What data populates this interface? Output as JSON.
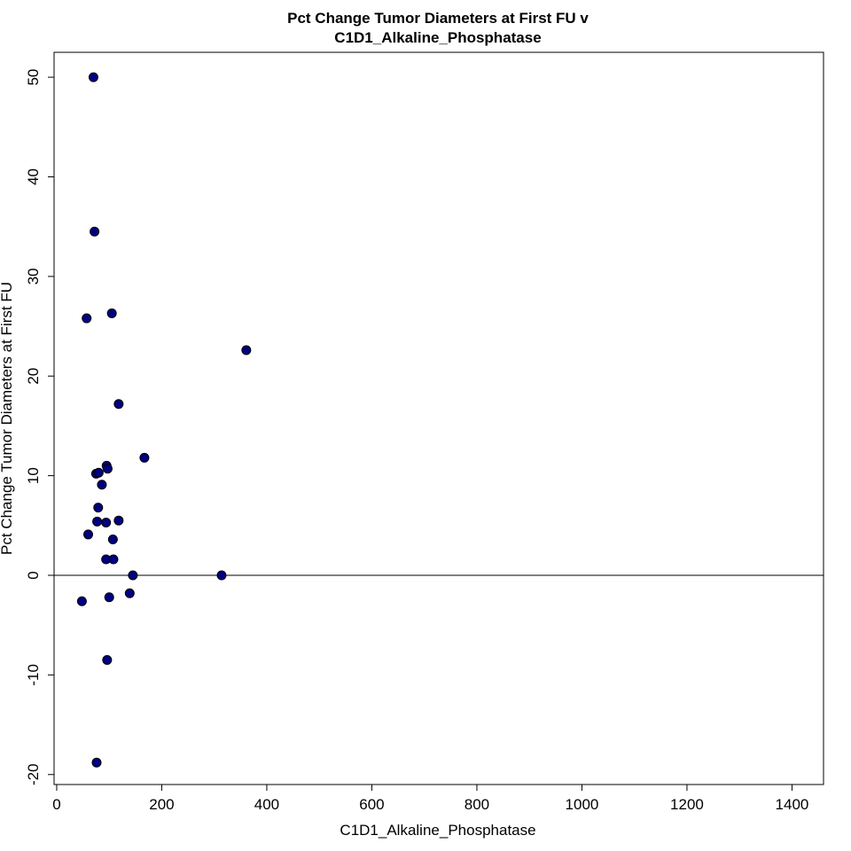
{
  "chart_data": {
    "type": "scatter",
    "title_line1": "Pct Change Tumor Diameters at First FU v",
    "title_line2": "C1D1_Alkaline_Phosphatase",
    "xlabel": "C1D1_Alkaline_Phosphatase",
    "ylabel": "Pct Change Tumor Diameters at First FU",
    "xlim": [
      -5,
      1460
    ],
    "ylim": [
      -21,
      52.5
    ],
    "x_ticks": [
      0,
      200,
      400,
      600,
      800,
      1000,
      1200,
      1400
    ],
    "x_tick_labels": [
      "0",
      "200",
      "400",
      "600",
      "800",
      "1000",
      "1200",
      "1400"
    ],
    "y_ticks": [
      -20,
      -10,
      0,
      10,
      20,
      30,
      40,
      50
    ],
    "y_tick_labels": [
      "-20",
      "-10",
      "0",
      "10",
      "20",
      "30",
      "40",
      "50"
    ],
    "reference_line_y": 0,
    "point_color": "#000080",
    "points": [
      {
        "x": 70,
        "y": 50.0
      },
      {
        "x": 72,
        "y": 34.5
      },
      {
        "x": 57,
        "y": 25.8
      },
      {
        "x": 105,
        "y": 26.3
      },
      {
        "x": 361,
        "y": 22.6
      },
      {
        "x": 118,
        "y": 17.2
      },
      {
        "x": 167,
        "y": 11.8
      },
      {
        "x": 95,
        "y": 11.0
      },
      {
        "x": 97,
        "y": 10.7
      },
      {
        "x": 75,
        "y": 10.2
      },
      {
        "x": 80,
        "y": 10.3
      },
      {
        "x": 86,
        "y": 9.1
      },
      {
        "x": 79,
        "y": 6.8
      },
      {
        "x": 77,
        "y": 5.4
      },
      {
        "x": 94,
        "y": 5.3
      },
      {
        "x": 118,
        "y": 5.5
      },
      {
        "x": 60,
        "y": 4.1
      },
      {
        "x": 107,
        "y": 3.6
      },
      {
        "x": 94,
        "y": 1.6
      },
      {
        "x": 108,
        "y": 1.6
      },
      {
        "x": 145,
        "y": 0.0
      },
      {
        "x": 314,
        "y": 0.0
      },
      {
        "x": 48,
        "y": -2.6
      },
      {
        "x": 100,
        "y": -2.2
      },
      {
        "x": 139,
        "y": -1.8
      },
      {
        "x": 96,
        "y": -8.5
      },
      {
        "x": 76,
        "y": -18.8
      }
    ]
  }
}
